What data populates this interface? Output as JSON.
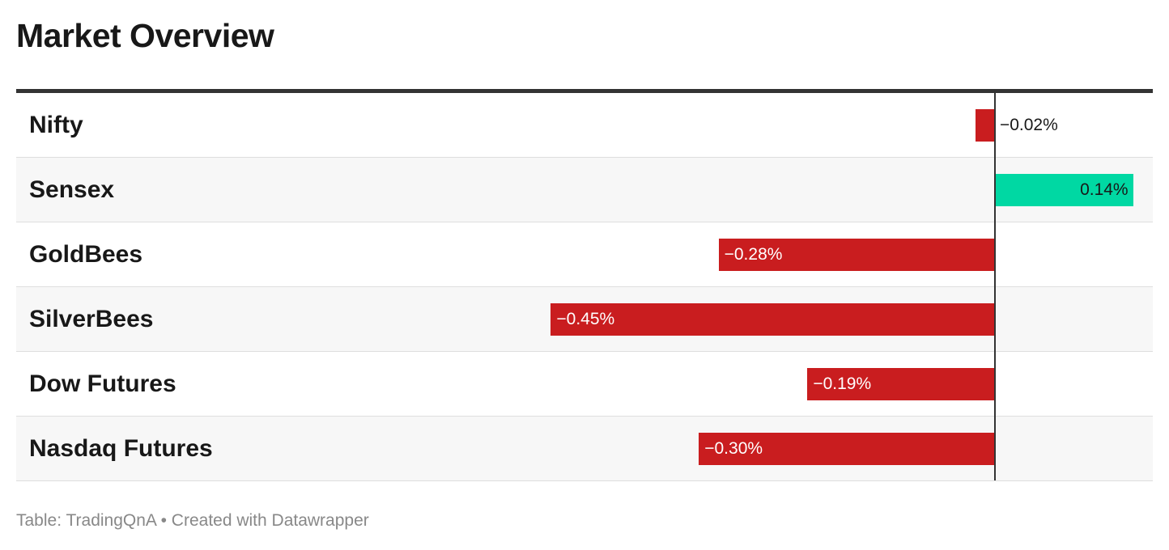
{
  "title": "Market Overview",
  "footer": "Table: TradingQnA • Created with Datawrapper",
  "colors": {
    "negative": "#c91d1f",
    "positive": "#00d8a3",
    "axis": "#333333"
  },
  "chart_data": {
    "type": "bar",
    "orientation": "horizontal",
    "title": "Market Overview",
    "categories": [
      "Nifty",
      "Sensex",
      "GoldBees",
      "SilverBees",
      "Dow Futures",
      "Nasdaq Futures"
    ],
    "values": [
      -0.02,
      0.14,
      -0.28,
      -0.45,
      -0.19,
      -0.3
    ],
    "labels": [
      "−0.02%",
      "0.14%",
      "−0.28%",
      "−0.45%",
      "−0.19%",
      "−0.30%"
    ],
    "unit": "%",
    "xlim": [
      -0.68,
      0.16
    ]
  }
}
